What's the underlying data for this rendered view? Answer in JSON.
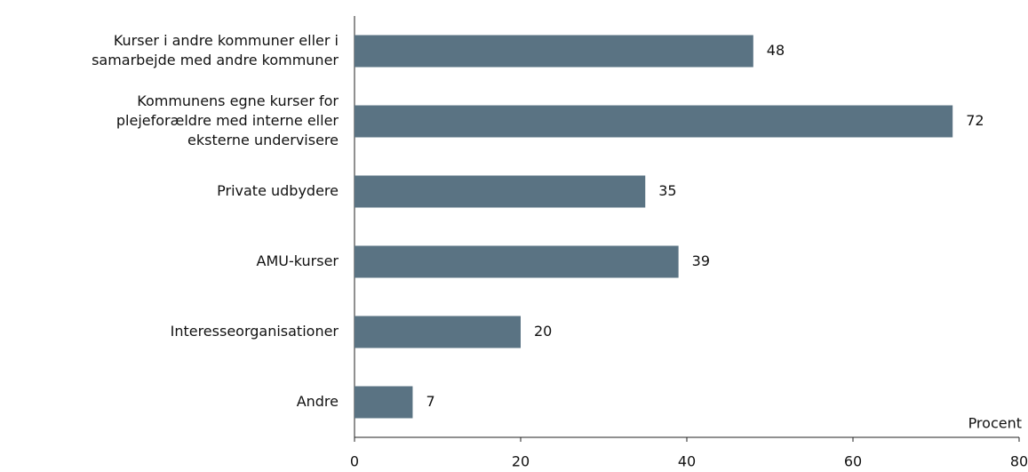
{
  "chart_data": {
    "type": "barh",
    "categories": [
      [
        "Kurser i andre kommuner eller i",
        "samarbejde med andre kommuner"
      ],
      [
        "Kommunens egne kurser for",
        "plejeforældre med interne eller",
        "eksterne undervisere"
      ],
      [
        "Private udbydere"
      ],
      [
        "AMU-kurser"
      ],
      [
        "Interesseorganisationer"
      ],
      [
        "Andre"
      ]
    ],
    "values": [
      48,
      72,
      35,
      39,
      20,
      7
    ],
    "color": "#5a7383",
    "xlim": [
      0,
      80
    ],
    "xticks": [
      0,
      20,
      40,
      60,
      80
    ],
    "xlabel": "Procent"
  }
}
